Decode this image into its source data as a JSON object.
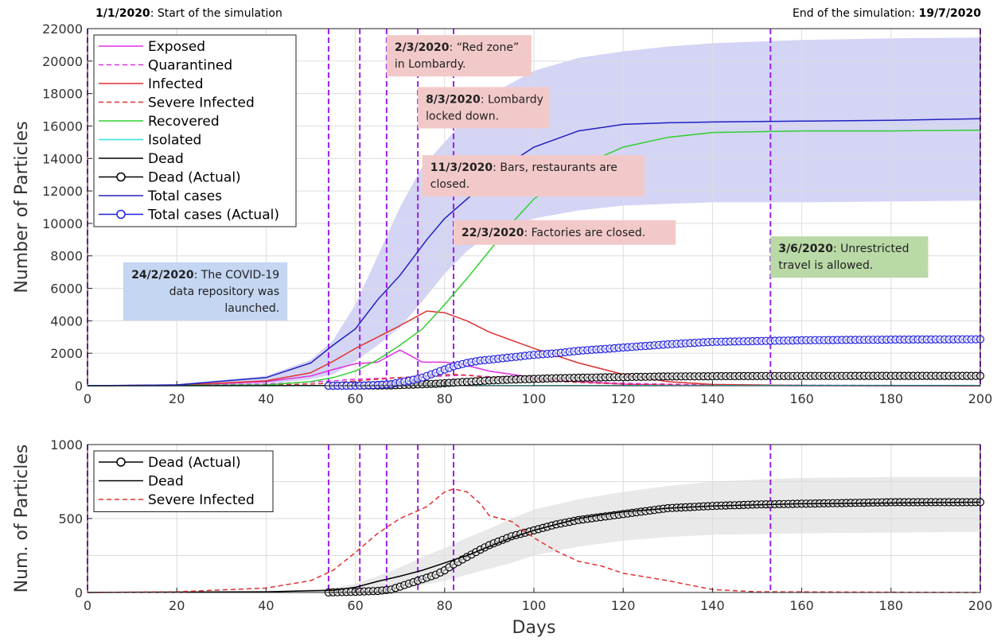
{
  "top_notes": {
    "left": {
      "date": "1/1/2020",
      "text": ": Start of the simulation"
    },
    "right": {
      "text": "End of the simulation: ",
      "date": "19/7/2020"
    }
  },
  "annotations": [
    {
      "id": "red-zone",
      "day": 67,
      "top_y": 21600,
      "bold": "2/3/2020",
      "lines": [
        ": “Red zone”",
        "in Lombardy."
      ],
      "color": "#f2c9c9"
    },
    {
      "id": "lombardy-lockdown",
      "day": 74,
      "top_y": 18400,
      "bold": "8/3/2020",
      "lines": [
        ": Lombardy",
        "locked down."
      ],
      "color": "#f2c9c9"
    },
    {
      "id": "bars-closed",
      "day": 75,
      "top_y": 14200,
      "bold": "11/3/2020",
      "lines": [
        ": Bars, restaurants are",
        "closed."
      ],
      "color": "#f2c9c9"
    },
    {
      "id": "factories-closed",
      "day": 82,
      "top_y": 10200,
      "bold": "22/3/2020",
      "lines": [
        ": Factories are closed."
      ],
      "color": "#f2c9c9"
    },
    {
      "id": "unrestricted-travel",
      "day": 153,
      "top_y": 9200,
      "bold": "3/6/2020",
      "lines": [
        ": Unrestricted",
        "travel is allowed."
      ],
      "color": "#b9d9a6"
    },
    {
      "id": "covid-repo",
      "day": 8,
      "top_y": 7600,
      "bold": "24/2/2020",
      "lines": [
        ": The COVID-19",
        "data repository was",
        "launched."
      ],
      "color": "#c4d6f2",
      "align": "right"
    }
  ],
  "chart_data": [
    {
      "type": "line",
      "title": "",
      "xlabel": "",
      "ylabel": "Number of Particles",
      "xlim": [
        0,
        200
      ],
      "ylim": [
        0,
        22000
      ],
      "xticks": [
        0,
        20,
        40,
        60,
        80,
        100,
        120,
        140,
        160,
        180,
        200
      ],
      "yticks": [
        0,
        2000,
        4000,
        6000,
        8000,
        10000,
        12000,
        14000,
        16000,
        18000,
        20000,
        22000
      ],
      "grid": true,
      "legend_position": "top-left",
      "vlines": [
        0,
        54,
        61,
        67,
        74,
        82,
        153,
        200
      ],
      "bands": [
        {
          "name": "Total cases range",
          "color": "#c5c5f2",
          "x": [
            0,
            20,
            40,
            50,
            55,
            60,
            65,
            70,
            75,
            80,
            85,
            90,
            100,
            110,
            120,
            130,
            140,
            160,
            180,
            200
          ],
          "lower": [
            0,
            0,
            100,
            400,
            700,
            1500,
            2500,
            3600,
            5200,
            6900,
            8300,
            9300,
            10300,
            10800,
            11100,
            11200,
            11300,
            11300,
            11350,
            11400
          ],
          "upper": [
            0,
            100,
            600,
            1600,
            2800,
            5000,
            8000,
            11000,
            13500,
            15000,
            16600,
            17900,
            19400,
            20200,
            20600,
            20900,
            21100,
            21300,
            21400,
            21450
          ]
        }
      ],
      "series": [
        {
          "name": "Exposed",
          "color": "#e030e0",
          "style": "solid",
          "marker": "none",
          "x": [
            0,
            20,
            40,
            50,
            55,
            60,
            65,
            70,
            72,
            75,
            80,
            85,
            90,
            100,
            110,
            120,
            130,
            140,
            160,
            200
          ],
          "y": [
            0,
            30,
            250,
            600,
            1000,
            1350,
            1450,
            2200,
            1900,
            1450,
            1450,
            1250,
            900,
            500,
            250,
            100,
            40,
            20,
            5,
            0
          ]
        },
        {
          "name": "Quarantined",
          "color": "#e030e0",
          "style": "dashed",
          "marker": "none",
          "x": [
            0,
            40,
            55,
            60,
            70,
            80,
            85,
            90,
            100,
            110,
            120,
            140,
            200
          ],
          "y": [
            0,
            100,
            300,
            400,
            500,
            600,
            650,
            550,
            400,
            250,
            150,
            50,
            0
          ]
        },
        {
          "name": "Infected",
          "color": "#e03030",
          "style": "solid",
          "marker": "none",
          "x": [
            0,
            20,
            40,
            50,
            55,
            60,
            65,
            70,
            76,
            80,
            85,
            90,
            100,
            110,
            120,
            130,
            140,
            160,
            200
          ],
          "y": [
            0,
            30,
            300,
            800,
            1500,
            2300,
            3000,
            3700,
            4600,
            4500,
            4000,
            3300,
            2300,
            1400,
            700,
            250,
            80,
            20,
            0
          ]
        },
        {
          "name": "Severe Infected",
          "color": "#e03030",
          "style": "dashed",
          "marker": "none",
          "x": [
            0,
            40,
            55,
            60,
            70,
            76,
            80,
            82,
            85,
            90,
            100,
            110,
            120,
            130,
            140,
            200
          ],
          "y": [
            0,
            30,
            150,
            300,
            500,
            600,
            680,
            700,
            650,
            500,
            350,
            200,
            100,
            50,
            20,
            0
          ]
        },
        {
          "name": "Recovered",
          "color": "#30d030",
          "style": "solid",
          "marker": "none",
          "x": [
            0,
            40,
            50,
            55,
            60,
            65,
            70,
            75,
            80,
            85,
            90,
            95,
            100,
            110,
            120,
            130,
            140,
            160,
            180,
            200
          ],
          "y": [
            0,
            50,
            250,
            500,
            900,
            1600,
            2500,
            3500,
            5000,
            6600,
            8300,
            10000,
            11500,
            13500,
            14700,
            15300,
            15600,
            15700,
            15700,
            15750
          ]
        },
        {
          "name": "Isolated",
          "color": "#30e0e0",
          "style": "solid",
          "marker": "none",
          "x": [
            0,
            200
          ],
          "y": [
            0,
            20
          ]
        },
        {
          "name": "Dead",
          "color": "#000000",
          "style": "solid",
          "marker": "none",
          "x": [
            0,
            40,
            55,
            60,
            65,
            70,
            75,
            80,
            85,
            90,
            95,
            100,
            105,
            110,
            115,
            120,
            130,
            140,
            160,
            180,
            200
          ],
          "y": [
            0,
            5,
            15,
            35,
            75,
            110,
            150,
            200,
            250,
            310,
            370,
            420,
            460,
            500,
            525,
            545,
            570,
            585,
            600,
            605,
            610
          ]
        },
        {
          "name": "Dead (Actual)",
          "color": "#000000",
          "style": "solid",
          "marker": "circle",
          "x": [
            54,
            60,
            65,
            68,
            70,
            72,
            75,
            78,
            80,
            82,
            85,
            88,
            90,
            95,
            100,
            105,
            110,
            115,
            120,
            125,
            130,
            140,
            150,
            160,
            170,
            180,
            190,
            200
          ],
          "y": [
            0,
            5,
            10,
            20,
            40,
            60,
            90,
            120,
            150,
            190,
            240,
            290,
            320,
            380,
            420,
            460,
            490,
            510,
            530,
            550,
            570,
            585,
            595,
            600,
            605,
            610,
            610,
            610
          ]
        },
        {
          "name": "Total cases",
          "color": "#2020c0",
          "style": "solid",
          "marker": "none",
          "x": [
            0,
            20,
            40,
            50,
            55,
            60,
            65,
            70,
            76,
            80,
            85,
            90,
            95,
            100,
            110,
            120,
            130,
            140,
            160,
            180,
            200
          ],
          "y": [
            0,
            50,
            500,
            1400,
            2500,
            3500,
            5300,
            6800,
            9000,
            10300,
            11500,
            12700,
            13800,
            14700,
            15700,
            16100,
            16200,
            16250,
            16300,
            16350,
            16450
          ]
        },
        {
          "name": "Total cases (Actual)",
          "color": "#2020e0",
          "style": "solid",
          "marker": "circle",
          "x": [
            54,
            60,
            65,
            68,
            70,
            72,
            75,
            78,
            80,
            82,
            85,
            88,
            90,
            95,
            100,
            105,
            110,
            115,
            120,
            125,
            130,
            140,
            150,
            160,
            170,
            180,
            190,
            200
          ],
          "y": [
            0,
            0,
            50,
            100,
            200,
            300,
            500,
            800,
            1000,
            1200,
            1400,
            1550,
            1600,
            1750,
            1900,
            2000,
            2150,
            2250,
            2350,
            2450,
            2550,
            2700,
            2750,
            2800,
            2820,
            2840,
            2850,
            2860
          ]
        }
      ]
    },
    {
      "type": "line",
      "title": "",
      "xlabel": "Days",
      "ylabel": "Num. of Particles",
      "xlim": [
        0,
        200
      ],
      "ylim": [
        0,
        1000
      ],
      "xticks": [
        0,
        20,
        40,
        60,
        80,
        100,
        120,
        140,
        160,
        180,
        200
      ],
      "yticks": [
        0,
        500,
        1000
      ],
      "grid": true,
      "legend_position": "top-left",
      "vlines": [
        0,
        54,
        61,
        67,
        74,
        82,
        153,
        200
      ],
      "bands": [
        {
          "name": "Dead range",
          "color": "#e2e2e2",
          "x": [
            40,
            55,
            60,
            65,
            70,
            75,
            80,
            85,
            90,
            95,
            100,
            110,
            120,
            130,
            140,
            160,
            180,
            200
          ],
          "lower": [
            0,
            0,
            5,
            10,
            25,
            50,
            80,
            120,
            160,
            200,
            250,
            310,
            350,
            375,
            390,
            400,
            405,
            410
          ],
          "upper": [
            5,
            30,
            60,
            110,
            170,
            240,
            300,
            370,
            430,
            500,
            560,
            630,
            680,
            720,
            750,
            775,
            780,
            780
          ]
        }
      ],
      "series": [
        {
          "name": "Dead (Actual)",
          "color": "#000000",
          "style": "solid",
          "marker": "circle",
          "x": [
            54,
            60,
            65,
            68,
            70,
            72,
            75,
            78,
            80,
            82,
            85,
            88,
            90,
            95,
            100,
            105,
            110,
            115,
            120,
            125,
            130,
            140,
            150,
            160,
            170,
            180,
            190,
            200
          ],
          "y": [
            0,
            5,
            10,
            20,
            40,
            60,
            90,
            120,
            150,
            190,
            240,
            290,
            320,
            380,
            420,
            460,
            490,
            510,
            530,
            550,
            570,
            585,
            595,
            600,
            605,
            610,
            610,
            610
          ]
        },
        {
          "name": "Dead",
          "color": "#000000",
          "style": "solid",
          "marker": "none",
          "x": [
            0,
            40,
            55,
            60,
            65,
            70,
            75,
            80,
            85,
            90,
            95,
            100,
            105,
            110,
            115,
            120,
            130,
            140,
            160,
            180,
            200
          ],
          "y": [
            0,
            5,
            15,
            35,
            75,
            110,
            150,
            200,
            250,
            310,
            370,
            420,
            460,
            500,
            525,
            545,
            570,
            585,
            600,
            605,
            610
          ]
        },
        {
          "name": "Severe Infected",
          "color": "#e03030",
          "style": "dashed",
          "marker": "none",
          "x": [
            0,
            20,
            40,
            50,
            55,
            60,
            65,
            70,
            76,
            80,
            82,
            85,
            88,
            90,
            95,
            100,
            105,
            110,
            115,
            120,
            130,
            140,
            150,
            200
          ],
          "y": [
            0,
            5,
            30,
            80,
            150,
            270,
            400,
            500,
            580,
            680,
            700,
            680,
            600,
            520,
            480,
            370,
            280,
            210,
            180,
            130,
            80,
            20,
            5,
            0
          ]
        }
      ]
    }
  ]
}
